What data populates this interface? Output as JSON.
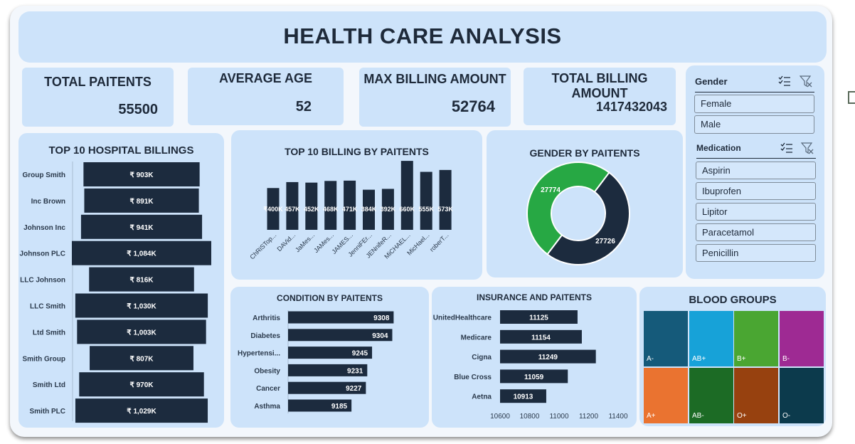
{
  "dashboard": {
    "title": "HEALTH CARE ANALYSIS"
  },
  "kpis": {
    "total_patients": {
      "label": "TOTAL PAITENTS",
      "value": "55500"
    },
    "average_age": {
      "label": "AVERAGE AGE",
      "value": "52"
    },
    "max_billing": {
      "label": "MAX BILLING AMOUNT",
      "value": "52764"
    },
    "total_billing": {
      "label": "TOTAL BILLING AMOUNT",
      "value": "1417432043"
    }
  },
  "slicers": {
    "gender": {
      "title": "Gender",
      "items": [
        "Female",
        "Male"
      ]
    },
    "medication": {
      "title": "Medication",
      "items": [
        "Aspirin",
        "Ibuprofen",
        "Lipitor",
        "Paracetamol",
        "Penicillin"
      ]
    }
  },
  "colors": {
    "dark": "#1c2b3e",
    "green": "#27a844",
    "panel": "#cde3fa"
  },
  "icons": [
    "multi-select-icon",
    "clear-filter-icon"
  ],
  "chart_data": [
    {
      "id": "hospital",
      "type": "bar",
      "orientation": "horizontal",
      "title": "TOP 10 HOSPITAL BILLINGS",
      "categories": [
        "Group Smith",
        "Inc Brown",
        "Johnson Inc",
        "Johnson PLC",
        "LLC Johnson",
        "LLC Smith",
        "Ltd Smith",
        "Smith Group",
        "Smith Ltd",
        "Smith PLC"
      ],
      "values": [
        903,
        891,
        941,
        1084,
        816,
        1030,
        1003,
        807,
        970,
        1029
      ],
      "labels": [
        "₹ 903K",
        "₹ 891K",
        "₹ 941K",
        "₹ 1,084K",
        "₹ 816K",
        "₹ 1,030K",
        "₹ 1,003K",
        "₹ 807K",
        "₹ 970K",
        "₹ 1,029K"
      ],
      "style": "centered funnel"
    },
    {
      "id": "patients",
      "type": "bar",
      "title": "TOP 10 BILLING BY PAITENTS",
      "categories": [
        "ChRiSTop...",
        "DAVid...",
        "JaMes...",
        "JAMes...",
        "JAMES...",
        "JenniFEr...",
        "JENnifeR...",
        "MiCHAEL...",
        "MicHael...",
        "roberT..."
      ],
      "values": [
        400,
        457,
        452,
        468,
        471,
        384,
        392,
        660,
        555,
        573
      ],
      "labels": [
        "₹400K",
        "457K",
        "452K",
        "468K",
        "471K",
        "384K",
        "392K",
        "660K",
        "555K",
        "573K"
      ]
    },
    {
      "id": "gender",
      "type": "pie",
      "variant": "donut",
      "title": "GENDER BY PAITENTS",
      "values": [
        27774,
        27726
      ],
      "labels": [
        "27774",
        "27726"
      ],
      "colors": [
        "#1c2b3e",
        "#27a844"
      ]
    },
    {
      "id": "condition",
      "type": "bar",
      "orientation": "horizontal",
      "title": "CONDITION BY PAITENTS",
      "categories": [
        "Arthritis",
        "Diabetes",
        "Hypertensi...",
        "Obesity",
        "Cancer",
        "Asthma"
      ],
      "values": [
        9308,
        9304,
        9245,
        9231,
        9227,
        9185
      ],
      "xlim": [
        9000,
        9330
      ]
    },
    {
      "id": "insurance",
      "type": "bar",
      "orientation": "horizontal",
      "title": "INSURANCE AND PAITENTS",
      "categories": [
        "UnitedHealthcare",
        "Medicare",
        "Cigna",
        "Blue Cross",
        "Aetna"
      ],
      "values": [
        11125,
        11154,
        11249,
        11059,
        10913
      ],
      "xlim": [
        10600,
        11400
      ],
      "ticks": [
        "10600",
        "10800",
        "11000",
        "11200",
        "11400"
      ]
    },
    {
      "id": "blood",
      "type": "heatmap",
      "variant": "treemap",
      "title": "BLOOD GROUPS",
      "categories": [
        "A-",
        "AB+",
        "B+",
        "B-",
        "A+",
        "AB-",
        "O+",
        "O-"
      ],
      "colors": [
        "#155a7a",
        "#17a2d8",
        "#4aa632",
        "#9e2a93",
        "#ea7330",
        "#1c6b25",
        "#97410f",
        "#0c3a4c"
      ]
    }
  ]
}
